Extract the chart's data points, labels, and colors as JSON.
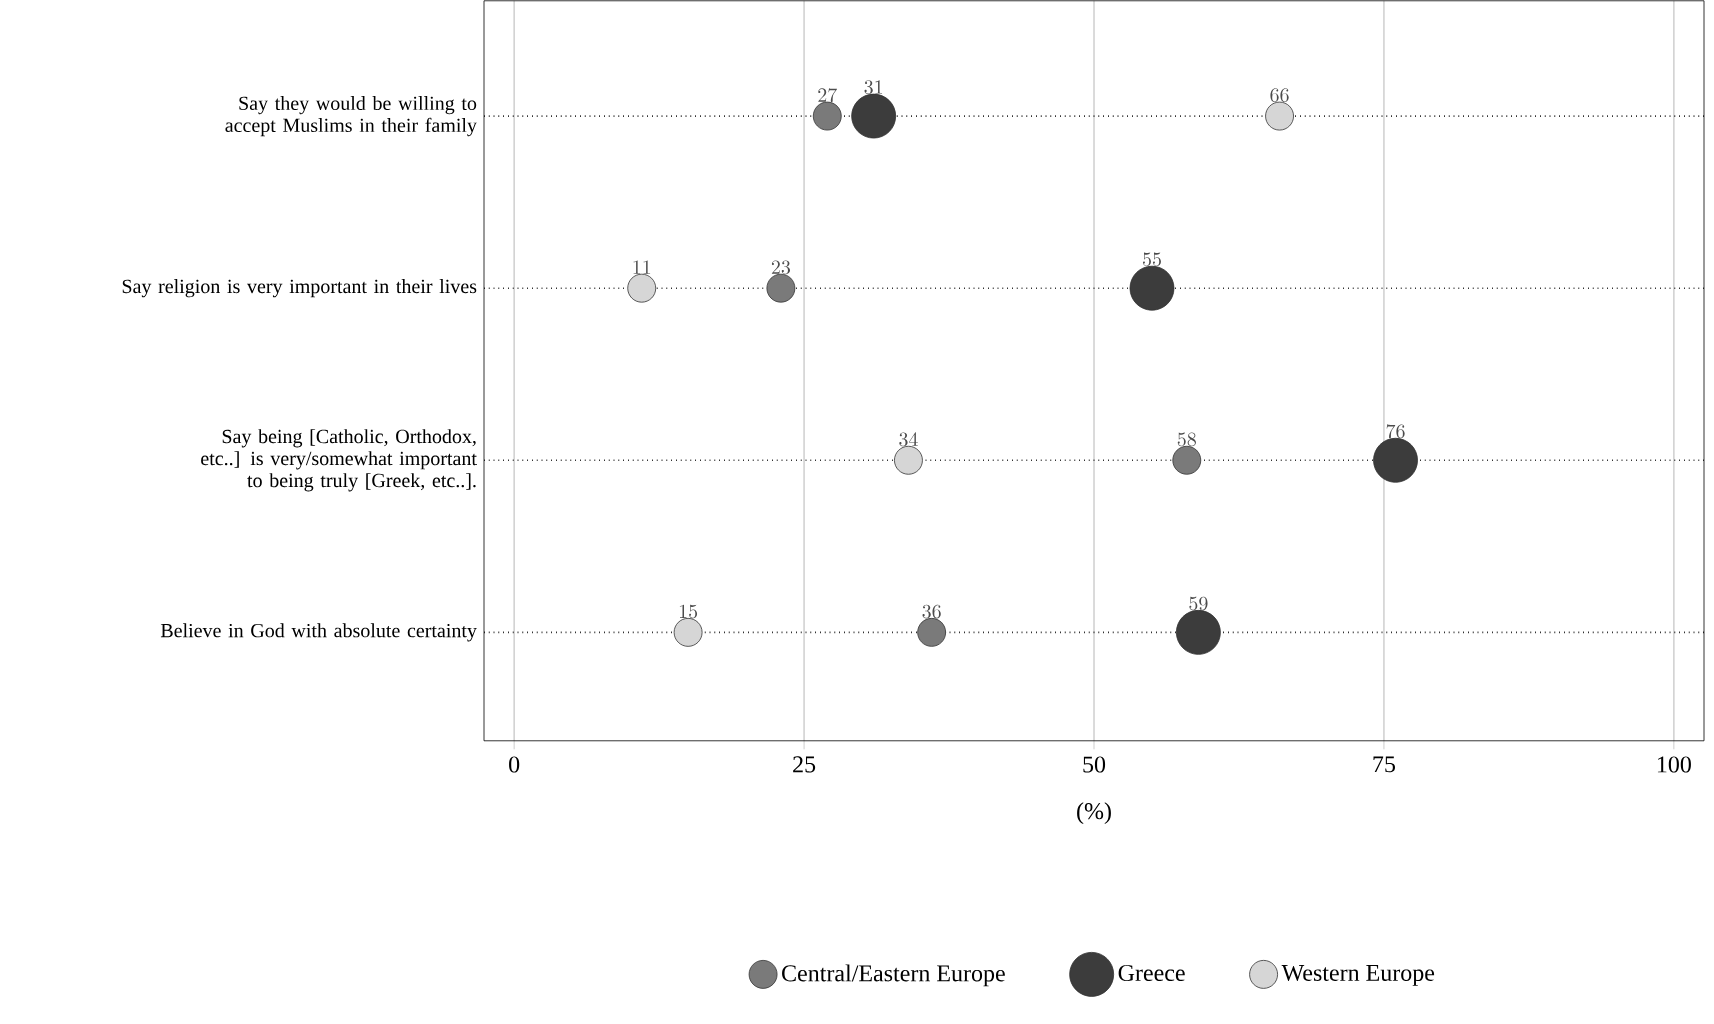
{
  "chart_data": {
    "type": "scatter",
    "orientation": "horizontal",
    "xlabel": "(%)",
    "categories": [
      "Say they would be willing to accept Muslims in their family",
      "Say religion is very important in their lives",
      "Say being [Catholic, Orthodox, etc..] is very/somewhat important to being truly [Greek, etc..].",
      "Believe in God with absolute certainty"
    ],
    "series": [
      {
        "name": "Central/Eastern Europe",
        "color": "#7a7a7a",
        "values": [
          27,
          23,
          58,
          36
        ]
      },
      {
        "name": "Greece",
        "color": "#3c3c3c",
        "values": [
          31,
          55,
          76,
          59
        ]
      },
      {
        "name": "Western Europe",
        "color": "#d6d6d6",
        "values": [
          66,
          11,
          34,
          15
        ]
      }
    ],
    "xlim": [
      -2.6,
      102.6
    ],
    "xticks": [
      0,
      25,
      50,
      75,
      100
    ],
    "grid": true,
    "legend": "bottom",
    "marker": "circle",
    "data_labels": true
  }
}
